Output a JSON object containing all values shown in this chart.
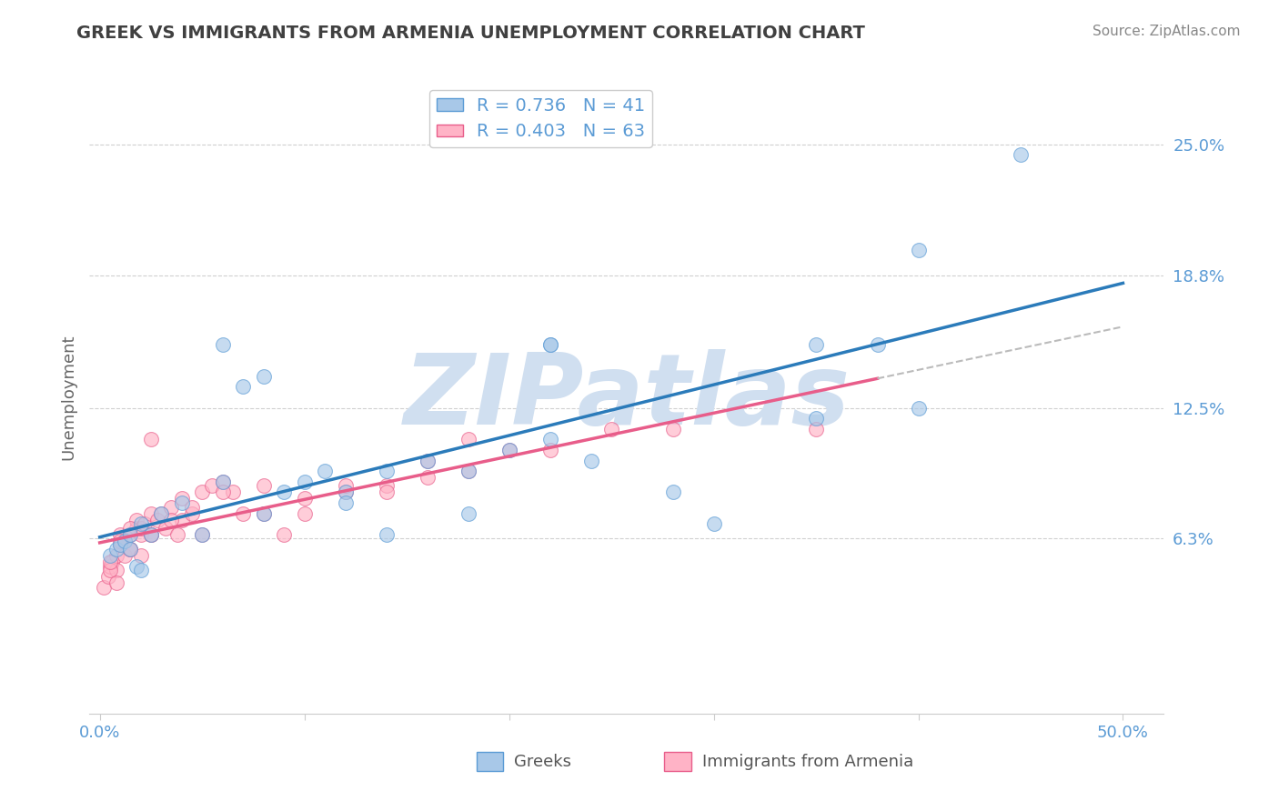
{
  "title": "GREEK VS IMMIGRANTS FROM ARMENIA UNEMPLOYMENT CORRELATION CHART",
  "source_text": "Source: ZipAtlas.com",
  "ylabel": "Unemployment",
  "xlim": [
    -0.005,
    0.52
  ],
  "ylim": [
    -0.02,
    0.28
  ],
  "xtick_positions": [
    0.0,
    0.1,
    0.2,
    0.3,
    0.4,
    0.5
  ],
  "xtick_labels": [
    "0.0%",
    "",
    "",
    "",
    "",
    "50.0%"
  ],
  "ytick_vals_right": [
    0.063,
    0.125,
    0.188,
    0.25
  ],
  "ytick_labels_right": [
    "6.3%",
    "12.5%",
    "18.8%",
    "25.0%"
  ],
  "background_color": "#ffffff",
  "title_color": "#404040",
  "title_fontsize": 14,
  "greek_fill_color": "#a8c8e8",
  "greek_edge_color": "#5b9bd5",
  "armenia_fill_color": "#ffb3c6",
  "armenia_edge_color": "#e85d8a",
  "legend_greek_label": "R = 0.736   N = 41",
  "legend_armenia_label": "R = 0.403   N = 63",
  "greek_line_color": "#2b7bba",
  "armenia_line_color": "#e85d8a",
  "dashed_color": "#bbbbbb",
  "watermark_color": "#d0dff0",
  "axis_tick_color": "#5b9bd5",
  "greek_x": [
    0.005,
    0.008,
    0.01,
    0.012,
    0.015,
    0.015,
    0.018,
    0.02,
    0.02,
    0.025,
    0.03,
    0.04,
    0.05,
    0.06,
    0.07,
    0.08,
    0.09,
    0.1,
    0.11,
    0.12,
    0.14,
    0.16,
    0.18,
    0.2,
    0.22,
    0.24,
    0.28,
    0.3,
    0.35,
    0.38,
    0.4,
    0.45,
    0.06,
    0.08,
    0.12,
    0.14,
    0.18,
    0.22,
    0.35,
    0.4,
    0.22
  ],
  "greek_y": [
    0.055,
    0.058,
    0.06,
    0.062,
    0.058,
    0.065,
    0.05,
    0.048,
    0.07,
    0.065,
    0.075,
    0.08,
    0.065,
    0.09,
    0.135,
    0.075,
    0.085,
    0.09,
    0.095,
    0.085,
    0.095,
    0.1,
    0.095,
    0.105,
    0.11,
    0.1,
    0.085,
    0.07,
    0.12,
    0.155,
    0.2,
    0.245,
    0.155,
    0.14,
    0.08,
    0.065,
    0.075,
    0.155,
    0.155,
    0.125,
    0.155
  ],
  "armenia_x": [
    0.002,
    0.004,
    0.005,
    0.006,
    0.008,
    0.008,
    0.01,
    0.01,
    0.012,
    0.012,
    0.015,
    0.015,
    0.018,
    0.018,
    0.02,
    0.02,
    0.022,
    0.025,
    0.025,
    0.028,
    0.03,
    0.032,
    0.035,
    0.038,
    0.04,
    0.04,
    0.045,
    0.05,
    0.055,
    0.06,
    0.065,
    0.07,
    0.08,
    0.09,
    0.1,
    0.12,
    0.14,
    0.16,
    0.18,
    0.2,
    0.005,
    0.015,
    0.025,
    0.035,
    0.045,
    0.06,
    0.08,
    0.1,
    0.12,
    0.14,
    0.16,
    0.18,
    0.22,
    0.25,
    0.28,
    0.35,
    0.005,
    0.008,
    0.01,
    0.015,
    0.02,
    0.025,
    0.05
  ],
  "armenia_y": [
    0.04,
    0.045,
    0.05,
    0.052,
    0.055,
    0.048,
    0.06,
    0.065,
    0.055,
    0.062,
    0.058,
    0.065,
    0.068,
    0.072,
    0.065,
    0.068,
    0.07,
    0.075,
    0.065,
    0.072,
    0.075,
    0.068,
    0.078,
    0.065,
    0.072,
    0.082,
    0.075,
    0.085,
    0.088,
    0.09,
    0.085,
    0.075,
    0.088,
    0.065,
    0.075,
    0.085,
    0.088,
    0.092,
    0.095,
    0.105,
    0.048,
    0.058,
    0.065,
    0.072,
    0.078,
    0.085,
    0.075,
    0.082,
    0.088,
    0.085,
    0.1,
    0.11,
    0.105,
    0.115,
    0.115,
    0.115,
    0.052,
    0.042,
    0.062,
    0.068,
    0.055,
    0.11,
    0.065
  ]
}
